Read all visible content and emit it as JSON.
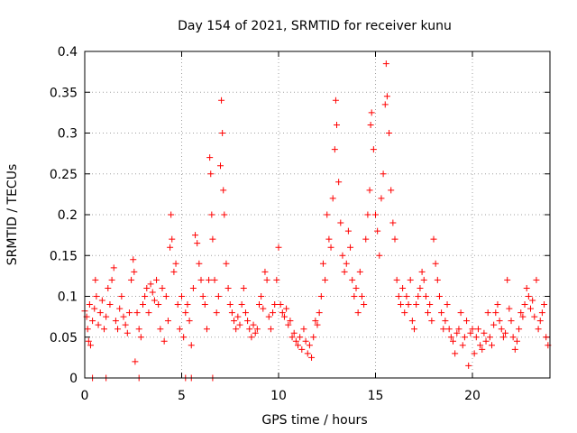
{
  "chart_data": {
    "type": "scatter",
    "title": "Day 154 of 2021, SRMTID for receiver kunu",
    "xlabel": "GPS time / hours",
    "ylabel": "SRMTID / TECUs",
    "xlim": [
      0,
      24
    ],
    "ylim": [
      0,
      0.4
    ],
    "x_ticks": [
      0,
      5,
      10,
      15,
      20
    ],
    "x_tick_labels": [
      "0",
      "5",
      "10",
      "15",
      "20"
    ],
    "y_ticks": [
      0,
      0.05,
      0.1,
      0.15,
      0.2,
      0.25,
      0.3,
      0.35,
      0.4
    ],
    "y_tick_labels": [
      "0",
      "0.05",
      "0.1",
      "0.15",
      "0.2",
      "0.25",
      "0.3",
      "0.35",
      "0.4"
    ],
    "grid": true,
    "marker": "+",
    "series": [
      {
        "name": "SRMTID",
        "color": "#ff0000",
        "points": [
          [
            0.0,
            0.082
          ],
          [
            0.1,
            0.075
          ],
          [
            0.15,
            0.06
          ],
          [
            0.2,
            0.045
          ],
          [
            0.25,
            0.09
          ],
          [
            0.3,
            0.04
          ],
          [
            0.4,
            0.07
          ],
          [
            0.5,
            0.085
          ],
          [
            0.55,
            0.12
          ],
          [
            0.6,
            0.1
          ],
          [
            0.7,
            0.065
          ],
          [
            0.8,
            0.08
          ],
          [
            0.9,
            0.095
          ],
          [
            1.0,
            0.06
          ],
          [
            1.1,
            0.075
          ],
          [
            1.2,
            0.11
          ],
          [
            1.3,
            0.09
          ],
          [
            1.4,
            0.12
          ],
          [
            1.5,
            0.135
          ],
          [
            1.6,
            0.07
          ],
          [
            1.7,
            0.06
          ],
          [
            1.8,
            0.085
          ],
          [
            1.9,
            0.1
          ],
          [
            2.0,
            0.075
          ],
          [
            2.1,
            0.065
          ],
          [
            2.2,
            0.055
          ],
          [
            2.3,
            0.08
          ],
          [
            2.4,
            0.12
          ],
          [
            2.5,
            0.145
          ],
          [
            2.55,
            0.13
          ],
          [
            2.6,
            0.02
          ],
          [
            2.7,
            0.08
          ],
          [
            2.8,
            0.06
          ],
          [
            2.9,
            0.05
          ],
          [
            3.0,
            0.09
          ],
          [
            3.1,
            0.1
          ],
          [
            3.2,
            0.11
          ],
          [
            3.3,
            0.08
          ],
          [
            3.4,
            0.115
          ],
          [
            3.5,
            0.105
          ],
          [
            3.6,
            0.095
          ],
          [
            3.7,
            0.12
          ],
          [
            3.8,
            0.09
          ],
          [
            3.9,
            0.06
          ],
          [
            4.0,
            0.11
          ],
          [
            4.1,
            0.045
          ],
          [
            4.2,
            0.1
          ],
          [
            4.3,
            0.07
          ],
          [
            4.4,
            0.16
          ],
          [
            4.45,
            0.2
          ],
          [
            4.5,
            0.17
          ],
          [
            4.6,
            0.13
          ],
          [
            4.7,
            0.14
          ],
          [
            4.8,
            0.09
          ],
          [
            4.9,
            0.06
          ],
          [
            5.0,
            0.1
          ],
          [
            5.1,
            0.05
          ],
          [
            5.2,
            0.08
          ],
          [
            5.3,
            0.09
          ],
          [
            5.4,
            0.07
          ],
          [
            5.5,
            0.04
          ],
          [
            5.6,
            0.11
          ],
          [
            5.7,
            0.175
          ],
          [
            5.8,
            0.165
          ],
          [
            5.9,
            0.14
          ],
          [
            6.0,
            0.12
          ],
          [
            6.1,
            0.1
          ],
          [
            6.2,
            0.09
          ],
          [
            6.3,
            0.06
          ],
          [
            6.4,
            0.12
          ],
          [
            6.45,
            0.27
          ],
          [
            6.5,
            0.25
          ],
          [
            6.55,
            0.2
          ],
          [
            6.6,
            0.17
          ],
          [
            6.7,
            0.12
          ],
          [
            6.8,
            0.08
          ],
          [
            6.9,
            0.1
          ],
          [
            7.0,
            0.26
          ],
          [
            7.05,
            0.34
          ],
          [
            7.1,
            0.3
          ],
          [
            7.15,
            0.23
          ],
          [
            7.2,
            0.2
          ],
          [
            7.3,
            0.14
          ],
          [
            7.4,
            0.11
          ],
          [
            7.5,
            0.09
          ],
          [
            7.6,
            0.08
          ],
          [
            7.7,
            0.07
          ],
          [
            7.8,
            0.06
          ],
          [
            7.9,
            0.075
          ],
          [
            8.0,
            0.065
          ],
          [
            8.1,
            0.09
          ],
          [
            8.2,
            0.11
          ],
          [
            8.3,
            0.08
          ],
          [
            8.4,
            0.07
          ],
          [
            8.5,
            0.06
          ],
          [
            8.6,
            0.05
          ],
          [
            8.7,
            0.065
          ],
          [
            8.8,
            0.055
          ],
          [
            8.9,
            0.06
          ],
          [
            9.0,
            0.09
          ],
          [
            9.1,
            0.1
          ],
          [
            9.2,
            0.085
          ],
          [
            9.3,
            0.13
          ],
          [
            9.4,
            0.12
          ],
          [
            9.5,
            0.075
          ],
          [
            9.6,
            0.06
          ],
          [
            9.7,
            0.08
          ],
          [
            9.8,
            0.09
          ],
          [
            9.9,
            0.12
          ],
          [
            10.0,
            0.16
          ],
          [
            10.1,
            0.09
          ],
          [
            10.2,
            0.08
          ],
          [
            10.3,
            0.075
          ],
          [
            10.4,
            0.085
          ],
          [
            10.5,
            0.065
          ],
          [
            10.6,
            0.07
          ],
          [
            10.7,
            0.05
          ],
          [
            10.8,
            0.055
          ],
          [
            10.9,
            0.045
          ],
          [
            11.0,
            0.04
          ],
          [
            11.1,
            0.05
          ],
          [
            11.2,
            0.035
          ],
          [
            11.3,
            0.06
          ],
          [
            11.4,
            0.045
          ],
          [
            11.5,
            0.03
          ],
          [
            11.6,
            0.04
          ],
          [
            11.7,
            0.025
          ],
          [
            11.8,
            0.05
          ],
          [
            11.9,
            0.07
          ],
          [
            12.0,
            0.065
          ],
          [
            12.1,
            0.08
          ],
          [
            12.2,
            0.1
          ],
          [
            12.3,
            0.14
          ],
          [
            12.4,
            0.12
          ],
          [
            12.5,
            0.2
          ],
          [
            12.6,
            0.17
          ],
          [
            12.7,
            0.16
          ],
          [
            12.8,
            0.22
          ],
          [
            12.9,
            0.28
          ],
          [
            12.95,
            0.34
          ],
          [
            13.0,
            0.31
          ],
          [
            13.1,
            0.24
          ],
          [
            13.2,
            0.19
          ],
          [
            13.3,
            0.15
          ],
          [
            13.4,
            0.13
          ],
          [
            13.5,
            0.14
          ],
          [
            13.6,
            0.18
          ],
          [
            13.7,
            0.16
          ],
          [
            13.8,
            0.12
          ],
          [
            13.9,
            0.1
          ],
          [
            14.0,
            0.11
          ],
          [
            14.1,
            0.08
          ],
          [
            14.2,
            0.13
          ],
          [
            14.3,
            0.1
          ],
          [
            14.4,
            0.09
          ],
          [
            14.5,
            0.17
          ],
          [
            14.6,
            0.2
          ],
          [
            14.7,
            0.23
          ],
          [
            14.75,
            0.31
          ],
          [
            14.8,
            0.325
          ],
          [
            14.9,
            0.28
          ],
          [
            15.0,
            0.2
          ],
          [
            15.1,
            0.18
          ],
          [
            15.2,
            0.15
          ],
          [
            15.3,
            0.22
          ],
          [
            15.4,
            0.25
          ],
          [
            15.5,
            0.335
          ],
          [
            15.55,
            0.385
          ],
          [
            15.6,
            0.345
          ],
          [
            15.7,
            0.3
          ],
          [
            15.8,
            0.23
          ],
          [
            15.9,
            0.19
          ],
          [
            16.0,
            0.17
          ],
          [
            16.1,
            0.12
          ],
          [
            16.2,
            0.1
          ],
          [
            16.3,
            0.09
          ],
          [
            16.4,
            0.11
          ],
          [
            16.5,
            0.08
          ],
          [
            16.6,
            0.1
          ],
          [
            16.7,
            0.09
          ],
          [
            16.8,
            0.12
          ],
          [
            16.9,
            0.07
          ],
          [
            17.0,
            0.06
          ],
          [
            17.1,
            0.09
          ],
          [
            17.2,
            0.1
          ],
          [
            17.3,
            0.11
          ],
          [
            17.4,
            0.13
          ],
          [
            17.5,
            0.12
          ],
          [
            17.6,
            0.1
          ],
          [
            17.7,
            0.08
          ],
          [
            17.8,
            0.09
          ],
          [
            17.9,
            0.07
          ],
          [
            18.0,
            0.17
          ],
          [
            18.1,
            0.14
          ],
          [
            18.2,
            0.12
          ],
          [
            18.3,
            0.1
          ],
          [
            18.4,
            0.08
          ],
          [
            18.5,
            0.06
          ],
          [
            18.6,
            0.07
          ],
          [
            18.7,
            0.09
          ],
          [
            18.8,
            0.06
          ],
          [
            18.9,
            0.05
          ],
          [
            19.0,
            0.045
          ],
          [
            19.1,
            0.03
          ],
          [
            19.2,
            0.055
          ],
          [
            19.3,
            0.06
          ],
          [
            19.4,
            0.08
          ],
          [
            19.5,
            0.04
          ],
          [
            19.6,
            0.05
          ],
          [
            19.7,
            0.07
          ],
          [
            19.8,
            0.015
          ],
          [
            19.9,
            0.055
          ],
          [
            20.0,
            0.06
          ],
          [
            20.1,
            0.03
          ],
          [
            20.2,
            0.05
          ],
          [
            20.3,
            0.06
          ],
          [
            20.4,
            0.04
          ],
          [
            20.5,
            0.035
          ],
          [
            20.6,
            0.055
          ],
          [
            20.7,
            0.045
          ],
          [
            20.8,
            0.08
          ],
          [
            20.9,
            0.05
          ],
          [
            21.0,
            0.04
          ],
          [
            21.1,
            0.065
          ],
          [
            21.2,
            0.08
          ],
          [
            21.3,
            0.09
          ],
          [
            21.4,
            0.07
          ],
          [
            21.5,
            0.06
          ],
          [
            21.6,
            0.05
          ],
          [
            21.7,
            0.055
          ],
          [
            21.8,
            0.12
          ],
          [
            21.9,
            0.085
          ],
          [
            22.0,
            0.07
          ],
          [
            22.1,
            0.05
          ],
          [
            22.2,
            0.035
          ],
          [
            22.3,
            0.045
          ],
          [
            22.4,
            0.06
          ],
          [
            22.5,
            0.08
          ],
          [
            22.6,
            0.075
          ],
          [
            22.7,
            0.09
          ],
          [
            22.8,
            0.11
          ],
          [
            22.9,
            0.1
          ],
          [
            23.0,
            0.085
          ],
          [
            23.1,
            0.095
          ],
          [
            23.2,
            0.075
          ],
          [
            23.3,
            0.12
          ],
          [
            23.4,
            0.06
          ],
          [
            23.5,
            0.07
          ],
          [
            23.6,
            0.08
          ],
          [
            23.7,
            0.09
          ],
          [
            23.8,
            0.05
          ],
          [
            23.9,
            0.04
          ]
        ]
      }
    ],
    "zero_points_x": [
      0.4,
      1.1,
      2.8,
      5.2,
      5.5,
      6.6
    ]
  }
}
